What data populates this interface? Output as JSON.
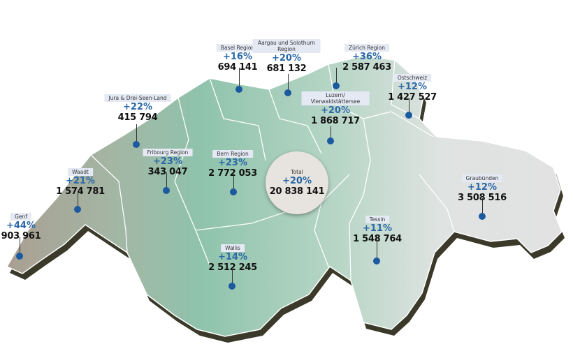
{
  "colors": {
    "accent": "#2a68a8",
    "dot": "#1b5a9f",
    "tag_bg": "#e4e9f4",
    "map_west": "#b3aa9d",
    "map_center": "#8fc3ac",
    "map_east": "#e2e2e2"
  },
  "total": {
    "label": "Total",
    "pct": "+20%",
    "value": "20 838 141"
  },
  "regions": [
    {
      "name": "Basel Region",
      "pct": "+16%",
      "value": "694 141"
    },
    {
      "name": "Aargau und Solothurn Region",
      "pct": "+20%",
      "value": "681 132"
    },
    {
      "name": "Zürich Region",
      "pct": "+36%",
      "value": "2 587 463"
    },
    {
      "name": "Ostschweiz",
      "pct": "+12%",
      "value": "1 427 527"
    },
    {
      "name": "Jura & Drei-Seen-Land",
      "pct": "+22%",
      "value": "415 794"
    },
    {
      "name": "Luzern/ Vierwaldstättersee",
      "pct": "+20%",
      "value": "1 868 717"
    },
    {
      "name": "Fribourg Region",
      "pct": "+23%",
      "value": "343 047"
    },
    {
      "name": "Bern Region",
      "pct": "+23%",
      "value": "2 772 053"
    },
    {
      "name": "Waadt",
      "pct": "+21%",
      "value": "1 574 781"
    },
    {
      "name": "Genf",
      "pct": "+44%",
      "value": "903 961"
    },
    {
      "name": "Wallis",
      "pct": "+14%",
      "value": "2 512 245"
    },
    {
      "name": "Tessin",
      "pct": "+11%",
      "value": "1 548 764"
    },
    {
      "name": "Graubünden",
      "pct": "+12%",
      "value": "3 508 516"
    }
  ]
}
